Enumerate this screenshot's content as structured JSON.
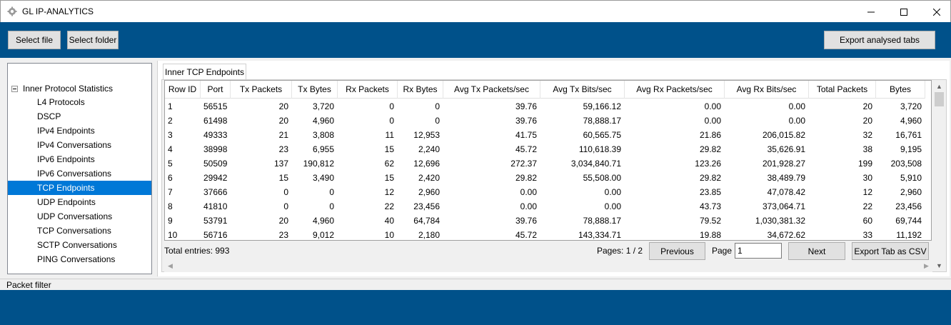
{
  "window": {
    "title": "GL IP-ANALYTICS"
  },
  "toolbar": {
    "select_file": "Select file",
    "select_folder": "Select folder",
    "export_analysed_tabs": "Export analysed tabs"
  },
  "tree": {
    "root": "Inner Protocol Statistics",
    "items": [
      {
        "label": "L4 Protocols"
      },
      {
        "label": "DSCP"
      },
      {
        "label": "IPv4 Endpoints"
      },
      {
        "label": "IPv4 Conversations"
      },
      {
        "label": "IPv6 Endpoints"
      },
      {
        "label": "IPv6 Conversations"
      },
      {
        "label": "TCP Endpoints",
        "selected": true
      },
      {
        "label": "UDP Endpoints"
      },
      {
        "label": "UDP Conversations"
      },
      {
        "label": "TCP Conversations"
      },
      {
        "label": "SCTP Conversations"
      },
      {
        "label": "PING Conversations"
      }
    ]
  },
  "tab": {
    "label": "Inner TCP Endpoints"
  },
  "table": {
    "columns": [
      "Row ID",
      "Port",
      "Tx Packets",
      "Tx Bytes",
      "Rx Packets",
      "Rx Bytes",
      "Avg Tx Packets/sec",
      "Avg Tx Bits/sec",
      "Avg Rx Packets/sec",
      "Avg Rx Bits/sec",
      "Total Packets",
      "Bytes"
    ],
    "rows": [
      [
        "1",
        "56515",
        "20",
        "3,720",
        "0",
        "0",
        "39.76",
        "59,166.12",
        "0.00",
        "0.00",
        "20",
        "3,720"
      ],
      [
        "2",
        "61498",
        "20",
        "4,960",
        "0",
        "0",
        "39.76",
        "78,888.17",
        "0.00",
        "0.00",
        "20",
        "4,960"
      ],
      [
        "3",
        "49333",
        "21",
        "3,808",
        "11",
        "12,953",
        "41.75",
        "60,565.75",
        "21.86",
        "206,015.82",
        "32",
        "16,761"
      ],
      [
        "4",
        "38998",
        "23",
        "6,955",
        "15",
        "2,240",
        "45.72",
        "110,618.39",
        "29.82",
        "35,626.91",
        "38",
        "9,195"
      ],
      [
        "5",
        "50509",
        "137",
        "190,812",
        "62",
        "12,696",
        "272.37",
        "3,034,840.71",
        "123.26",
        "201,928.27",
        "199",
        "203,508"
      ],
      [
        "6",
        "29942",
        "15",
        "3,490",
        "15",
        "2,420",
        "29.82",
        "55,508.00",
        "29.82",
        "38,489.79",
        "30",
        "5,910"
      ],
      [
        "7",
        "37666",
        "0",
        "0",
        "12",
        "2,960",
        "0.00",
        "0.00",
        "23.85",
        "47,078.42",
        "12",
        "2,960"
      ],
      [
        "8",
        "41810",
        "0",
        "0",
        "22",
        "23,456",
        "0.00",
        "0.00",
        "43.73",
        "373,064.71",
        "22",
        "23,456"
      ],
      [
        "9",
        "53791",
        "20",
        "4,960",
        "40",
        "64,784",
        "39.76",
        "78,888.17",
        "79.52",
        "1,030,381.32",
        "60",
        "69,744"
      ],
      [
        "10",
        "56716",
        "23",
        "9,012",
        "10",
        "2,180",
        "45.72",
        "143,334.71",
        "19.88",
        "34,672.62",
        "33",
        "11,192"
      ]
    ]
  },
  "pagination": {
    "total_entries": "Total entries: 993",
    "pages": "Pages: 1 / 2",
    "previous": "Previous",
    "page_label": "Page",
    "page_value": "1",
    "next": "Next",
    "export_csv": "Export Tab as CSV"
  },
  "status": {
    "packet_filter": "Packet filter"
  },
  "colors": {
    "brand": "#00518a",
    "selection": "#0078d7"
  }
}
